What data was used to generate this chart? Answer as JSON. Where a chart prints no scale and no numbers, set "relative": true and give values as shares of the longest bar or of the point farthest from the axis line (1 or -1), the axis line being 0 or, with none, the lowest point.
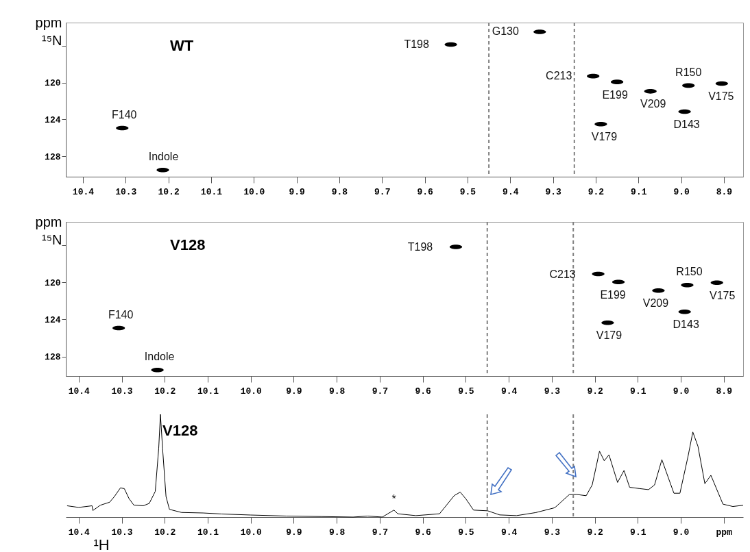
{
  "chart_data": [
    {
      "type": "scatter",
      "title": "WT",
      "ylabel": "ppm ¹⁵N",
      "xlim": [
        10.44,
        8.855
      ],
      "ylim": [
        130.2,
        113.5
      ],
      "xticks": [
        10.4,
        10.3,
        10.2,
        10.1,
        {
          "value": 10,
          "label": "10.0"
        },
        9.9,
        9.8,
        9.7,
        9.6,
        9.5,
        9.4,
        9.3,
        9.2,
        9.1,
        {
          "value": 9,
          "label": "9.0"
        },
        8.9
      ],
      "yticks": [
        {
          "value": 116,
          "label": null
        },
        120,
        124,
        128
      ],
      "series": [
        {
          "color": "#000000",
          "x": [
            10.308,
            10.213,
            9.539,
            9.331,
            9.206,
            9.15,
            9.072,
            8.983,
            8.905,
            8.992,
            9.188
          ],
          "values": [
            124.93,
            129.48,
            115.87,
            114.5,
            119.3,
            119.93,
            120.95,
            120.32,
            120.11,
            123.15,
            124.5
          ]
        }
      ],
      "annotations": [
        {
          "text": "F140",
          "x": 10.308,
          "y": 124.93
        },
        {
          "text": "Indole",
          "x": 10.213,
          "y": 129.48
        },
        {
          "text": "T198",
          "x": 9.539,
          "y": 115.87
        },
        {
          "text": "G130",
          "x": 9.331,
          "y": 114.5
        },
        {
          "text": "C213",
          "x": 9.206,
          "y": 119.3
        },
        {
          "text": "E199",
          "x": 9.15,
          "y": 119.93
        },
        {
          "text": "V209",
          "x": 9.072,
          "y": 120.95
        },
        {
          "text": "R150",
          "x": 8.983,
          "y": 120.32
        },
        {
          "text": "V175",
          "x": 8.905,
          "y": 120.11
        },
        {
          "text": "D143",
          "x": 8.992,
          "y": 123.15
        },
        {
          "text": "V179",
          "x": 9.188,
          "y": 124.5
        }
      ],
      "ref_lines": [
        {
          "axis": "x",
          "value": 9.45,
          "color": "#808080",
          "line_style": "dashed"
        },
        {
          "axis": "x",
          "value": 9.25,
          "color": "#808080",
          "line_style": "dashed"
        }
      ]
    },
    {
      "type": "scatter",
      "title": "V128",
      "ylabel": "ppm ¹⁵N",
      "xlim": [
        10.43,
        8.855
      ],
      "ylim": [
        130.1,
        113.5
      ],
      "xticks": [
        10.4,
        10.3,
        10.2,
        10.1,
        {
          "value": 10,
          "label": "10.0"
        },
        9.9,
        9.8,
        9.7,
        9.6,
        9.5,
        9.4,
        9.3,
        9.2,
        9.1,
        {
          "value": 9,
          "label": "9.0"
        },
        8.9
      ],
      "yticks": [
        {
          "value": 116,
          "label": null
        },
        120,
        124,
        128
      ],
      "series": [
        {
          "color": "#000000",
          "x": [
            10.307,
            10.217,
            9.523,
            9.192,
            9.145,
            9.052,
            8.985,
            8.916,
            8.991,
            9.17
          ],
          "values": [
            124.93,
            129.45,
            116.2,
            119.11,
            119.97,
            120.89,
            120.31,
            120.05,
            123.19,
            124.37
          ]
        }
      ],
      "annotations": [
        {
          "text": "F140",
          "x": 10.307,
          "y": 124.93
        },
        {
          "text": "Indole",
          "x": 10.217,
          "y": 129.45
        },
        {
          "text": "T198",
          "x": 9.523,
          "y": 116.2
        },
        {
          "text": "C213",
          "x": 9.192,
          "y": 119.11
        },
        {
          "text": "E199",
          "x": 9.145,
          "y": 119.97
        },
        {
          "text": "V209",
          "x": 9.052,
          "y": 120.89
        },
        {
          "text": "R150",
          "x": 8.985,
          "y": 120.31
        },
        {
          "text": "V175",
          "x": 8.916,
          "y": 120.05
        },
        {
          "text": "D143",
          "x": 8.991,
          "y": 123.19
        },
        {
          "text": "V179",
          "x": 9.17,
          "y": 124.37
        }
      ],
      "ref_lines": [
        {
          "axis": "x",
          "value": 9.45,
          "color": "#808080",
          "line_style": "dashed"
        },
        {
          "axis": "x",
          "value": 9.25,
          "color": "#808080",
          "line_style": "dashed"
        }
      ]
    },
    {
      "type": "line",
      "title": "V128",
      "xlabel": "¹H",
      "relative": true,
      "xlim": [
        10.43,
        8.855
      ],
      "xticks": [
        10.4,
        10.3,
        10.2,
        10.1,
        {
          "value": 10,
          "label": "10.0"
        },
        9.9,
        9.8,
        9.7,
        9.6,
        9.5,
        9.4,
        9.3,
        9.2,
        9.1,
        {
          "value": 9,
          "label": "9.0"
        },
        {
          "value": 8.9,
          "label": "ppm"
        }
      ],
      "series": [
        {
          "color": "#000000",
          "x": [
            10.427,
            10.4,
            10.369,
            10.367,
            10.35,
            10.328,
            10.317,
            10.303,
            10.294,
            10.283,
            10.272,
            10.25,
            10.236,
            10.222,
            10.214,
            10.21,
            10.205,
            10.197,
            10.189,
            10.161,
            10.111,
            10.067,
            10.0,
            9.917,
            9.834,
            9.762,
            9.728,
            9.694,
            9.667,
            9.658,
            9.616,
            9.561,
            9.527,
            9.513,
            9.499,
            9.482,
            9.449,
            9.421,
            9.382,
            9.337,
            9.293,
            9.259,
            9.242,
            9.22,
            9.206,
            9.189,
            9.178,
            9.167,
            9.147,
            9.132,
            9.119,
            9.097,
            9.075,
            9.061,
            9.044,
            9.027,
            9.016,
            9.002,
            8.983,
            8.972,
            8.96,
            8.944,
            8.93,
            8.902,
            8.879,
            8.855
          ],
          "values": [
            0.11,
            0.094,
            0.11,
            0.064,
            0.115,
            0.145,
            0.2,
            0.284,
            0.277,
            0.18,
            0.117,
            0.11,
            0.133,
            0.25,
            0.668,
            1,
            0.668,
            0.2,
            0.075,
            0.045,
            0.04,
            0.03,
            0.02,
            0.01,
            0.005,
            0,
            0.01,
            0,
            0.068,
            0.032,
            0.014,
            0.032,
            0.208,
            0.243,
            0.173,
            0.068,
            0.061,
            0.021,
            0.014,
            0.044,
            0.091,
            0.22,
            0.22,
            0.208,
            0.313,
            0.641,
            0.548,
            0.606,
            0.337,
            0.454,
            0.29,
            0.278,
            0.267,
            0.313,
            0.559,
            0.36,
            0.232,
            0.232,
            0.594,
            0.828,
            0.688,
            0.325,
            0.407,
            0.126,
            0.103,
            0.115
          ]
        }
      ],
      "annotations": [
        {
          "text": "*",
          "x": 9.667,
          "y": 0.068
        }
      ],
      "ref_lines": [
        {
          "axis": "x",
          "value": 9.45,
          "color": "#808080",
          "line_style": "dashed"
        },
        {
          "axis": "x",
          "value": 9.25,
          "color": "#808080",
          "line_style": "dashed"
        }
      ]
    }
  ]
}
